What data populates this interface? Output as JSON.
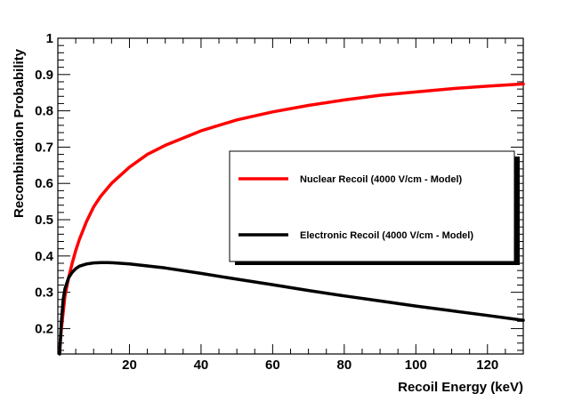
{
  "chart_data": {
    "type": "line",
    "title": "",
    "xlabel": "Recoil Energy (keV)",
    "ylabel": "Recombination Probability",
    "xlim": [
      0,
      130
    ],
    "ylim": [
      0.13,
      1.0
    ],
    "x_ticks": [
      20,
      40,
      60,
      80,
      100,
      120
    ],
    "y_ticks": [
      0.2,
      0.3,
      0.4,
      0.5,
      0.6,
      0.7,
      0.8,
      0.9,
      1
    ],
    "x_tick_labels": [
      "20",
      "40",
      "60",
      "80",
      "100",
      "120"
    ],
    "y_tick_labels": [
      "0.2",
      "0.3",
      "0.4",
      "0.5",
      "0.6",
      "0.7",
      "0.8",
      "0.9",
      "1"
    ],
    "grid": false,
    "legend_position": "center-right",
    "series": [
      {
        "name": "Nuclear Recoil (4000 V/cm - Model)",
        "color": "#ff0000",
        "x": [
          0.5,
          1,
          2,
          3,
          4,
          5,
          6,
          8,
          10,
          12,
          15,
          20,
          25,
          30,
          40,
          50,
          60,
          70,
          80,
          90,
          100,
          110,
          120,
          130
        ],
        "y": [
          0.14,
          0.2,
          0.29,
          0.34,
          0.38,
          0.415,
          0.445,
          0.495,
          0.535,
          0.565,
          0.6,
          0.645,
          0.68,
          0.705,
          0.745,
          0.775,
          0.797,
          0.815,
          0.83,
          0.843,
          0.852,
          0.861,
          0.868,
          0.874
        ]
      },
      {
        "name": "Electronic Recoil (4000 V/cm - Model)",
        "color": "#000000",
        "x": [
          0.5,
          1,
          1.5,
          2,
          3,
          4,
          5,
          6,
          8,
          10,
          12,
          14,
          16,
          20,
          30,
          40,
          50,
          60,
          70,
          80,
          90,
          100,
          110,
          120,
          130
        ],
        "y": [
          0.13,
          0.22,
          0.28,
          0.31,
          0.34,
          0.355,
          0.365,
          0.372,
          0.378,
          0.381,
          0.382,
          0.382,
          0.381,
          0.378,
          0.367,
          0.352,
          0.336,
          0.321,
          0.305,
          0.29,
          0.276,
          0.262,
          0.249,
          0.236,
          0.223
        ]
      }
    ]
  }
}
